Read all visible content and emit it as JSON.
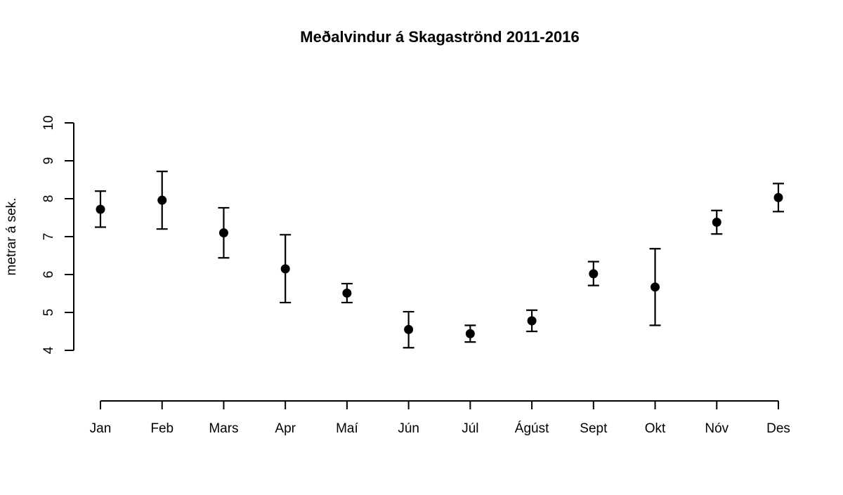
{
  "chart_data": {
    "type": "scatter",
    "title": "Meðalvindur á Skagaströnd 2011-2016",
    "xlabel": "",
    "ylabel": "metrar á sek.",
    "categories": [
      "Jan",
      "Feb",
      "Mars",
      "Apr",
      "Maí",
      "Jún",
      "Júl",
      "Ágúst",
      "Sept",
      "Okt",
      "Nóv",
      "Des"
    ],
    "values": [
      7.72,
      7.96,
      7.1,
      6.15,
      5.51,
      4.55,
      4.44,
      4.78,
      6.02,
      5.67,
      7.38,
      8.03
    ],
    "error_low": [
      7.25,
      7.2,
      6.44,
      5.26,
      5.26,
      4.07,
      4.22,
      4.5,
      5.71,
      4.66,
      7.07,
      7.66
    ],
    "error_high": [
      8.2,
      8.72,
      7.76,
      7.05,
      5.76,
      5.02,
      4.66,
      5.06,
      6.34,
      6.68,
      7.69,
      8.4
    ],
    "ylim": [
      4,
      10
    ],
    "yticks": [
      "4",
      "5",
      "6",
      "7",
      "8",
      "9",
      "10"
    ],
    "grid": false,
    "legend": "none",
    "colors": {
      "marker": "#000000",
      "axis": "#000000",
      "background": "#ffffff"
    }
  }
}
